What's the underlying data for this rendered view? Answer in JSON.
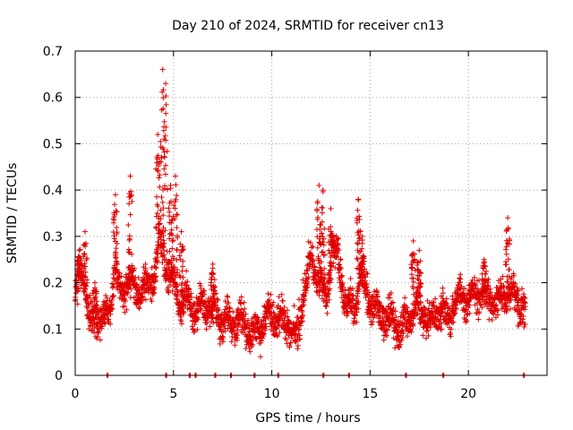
{
  "chart_data": {
    "type": "scatter",
    "title": "Day 210 of 2024, SRMTID for receiver cn13",
    "xlabel": "GPS time / hours",
    "ylabel": "SRMTID / TECUs",
    "xlim": [
      0,
      24
    ],
    "ylim": [
      0,
      0.7
    ],
    "x_ticks": [
      0,
      5,
      10,
      15,
      20
    ],
    "y_ticks": [
      0,
      0.1,
      0.2,
      0.3,
      0.4,
      0.5,
      0.6,
      0.7
    ],
    "grid": true,
    "marker": "+",
    "marker_color": "#e00000",
    "seed": 210,
    "envelope": [
      [
        0.0,
        0.17
      ],
      [
        0.3,
        0.22
      ],
      [
        0.5,
        0.2
      ],
      [
        0.8,
        0.11
      ],
      [
        1.2,
        0.13
      ],
      [
        1.5,
        0.12
      ],
      [
        1.8,
        0.15
      ],
      [
        2.0,
        0.24
      ],
      [
        2.3,
        0.17
      ],
      [
        2.7,
        0.21
      ],
      [
        3.0,
        0.18
      ],
      [
        3.5,
        0.19
      ],
      [
        4.0,
        0.21
      ],
      [
        4.3,
        0.3
      ],
      [
        4.6,
        0.24
      ],
      [
        5.0,
        0.2
      ],
      [
        5.3,
        0.16
      ],
      [
        5.6,
        0.17
      ],
      [
        6.0,
        0.14
      ],
      [
        6.5,
        0.15
      ],
      [
        7.0,
        0.14
      ],
      [
        7.5,
        0.12
      ],
      [
        8.0,
        0.11
      ],
      [
        8.5,
        0.12
      ],
      [
        9.0,
        0.09
      ],
      [
        9.4,
        0.1
      ],
      [
        9.7,
        0.13
      ],
      [
        10.0,
        0.12
      ],
      [
        10.5,
        0.12
      ],
      [
        11.0,
        0.1
      ],
      [
        11.3,
        0.08
      ],
      [
        11.6,
        0.18
      ],
      [
        12.0,
        0.25
      ],
      [
        12.4,
        0.21
      ],
      [
        12.8,
        0.17
      ],
      [
        13.1,
        0.28
      ],
      [
        13.4,
        0.24
      ],
      [
        13.8,
        0.15
      ],
      [
        14.2,
        0.14
      ],
      [
        14.5,
        0.21
      ],
      [
        15.0,
        0.16
      ],
      [
        15.5,
        0.13
      ],
      [
        16.0,
        0.12
      ],
      [
        16.5,
        0.1
      ],
      [
        17.0,
        0.12
      ],
      [
        17.3,
        0.16
      ],
      [
        17.7,
        0.14
      ],
      [
        18.0,
        0.12
      ],
      [
        18.5,
        0.14
      ],
      [
        19.0,
        0.13
      ],
      [
        19.5,
        0.17
      ],
      [
        20.0,
        0.16
      ],
      [
        20.5,
        0.18
      ],
      [
        21.0,
        0.17
      ],
      [
        21.5,
        0.16
      ],
      [
        22.0,
        0.18
      ],
      [
        22.5,
        0.16
      ],
      [
        22.8,
        0.14
      ]
    ],
    "spikes": [
      [
        0.2,
        0.27
      ],
      [
        0.5,
        0.31
      ],
      [
        1.0,
        0.2
      ],
      [
        2.05,
        0.39
      ],
      [
        2.8,
        0.43
      ],
      [
        4.2,
        0.52
      ],
      [
        4.45,
        0.66
      ],
      [
        4.6,
        0.63
      ],
      [
        4.85,
        0.41
      ],
      [
        5.1,
        0.43
      ],
      [
        5.4,
        0.31
      ],
      [
        7.0,
        0.24
      ],
      [
        12.4,
        0.41
      ],
      [
        12.6,
        0.4
      ],
      [
        13.0,
        0.36
      ],
      [
        14.4,
        0.38
      ],
      [
        14.6,
        0.3
      ],
      [
        17.2,
        0.29
      ],
      [
        17.5,
        0.27
      ],
      [
        20.8,
        0.25
      ],
      [
        22.0,
        0.34
      ]
    ],
    "zero_points": [
      1.62,
      4.6,
      5.8,
      6.1,
      7.1,
      7.9,
      9.1,
      10.3,
      12.6,
      13.9,
      16.8,
      18.7,
      22.8
    ],
    "end_hour": 22.9
  }
}
